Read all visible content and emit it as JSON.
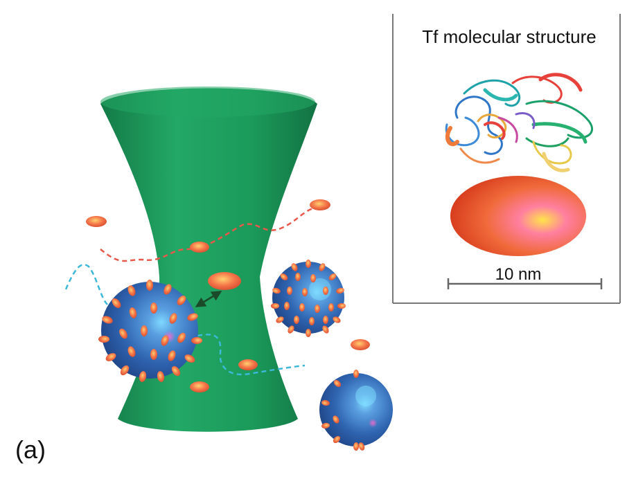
{
  "figure": {
    "panel_label": "(a)",
    "inset": {
      "title": "Tf molecular structure",
      "scale_bar_label": "10 nm"
    }
  },
  "colors": {
    "beam": "#1a9a5c",
    "particle": "#2f6fb6",
    "protein": "#f07a4a",
    "red_trace": "#e8584a",
    "cyan_trace": "#3cb8d8",
    "inset_border": "#777777"
  }
}
